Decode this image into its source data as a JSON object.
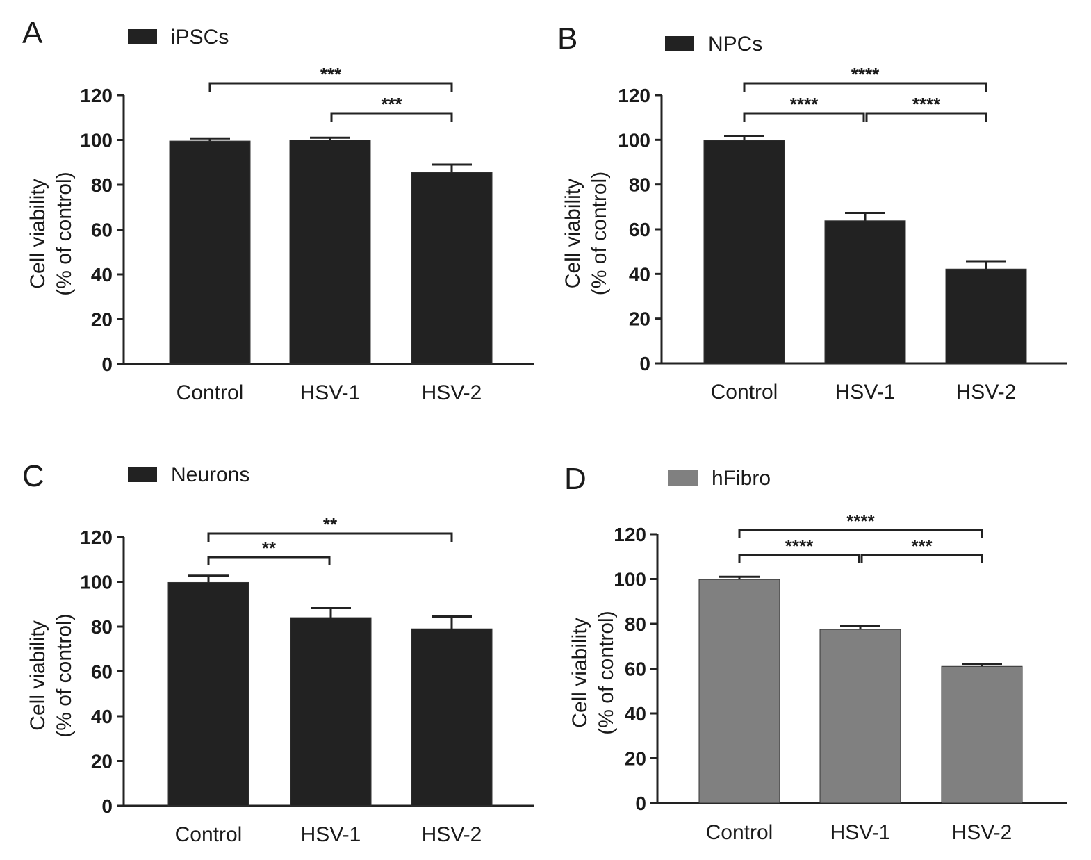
{
  "chart_data": [
    {
      "panel": "A",
      "type": "bar",
      "legend": "iPSCs",
      "bar_color": "#222222",
      "categories": [
        "Control",
        "HSV-1",
        "HSV-2"
      ],
      "values": [
        99.5,
        100,
        85.5
      ],
      "errors": [
        1.2,
        1.0,
        3.5
      ],
      "ylabel": [
        "Cell viability",
        "(% of control)"
      ],
      "yticks": [
        0,
        20,
        40,
        60,
        80,
        100,
        120
      ],
      "ylim": [
        0,
        120
      ],
      "significance": [
        {
          "from": 0,
          "to": 2,
          "label": "***"
        },
        {
          "from": 1,
          "to": 2,
          "label": "***"
        }
      ]
    },
    {
      "panel": "B",
      "type": "bar",
      "legend": "NPCs",
      "bar_color": "#222222",
      "categories": [
        "Control",
        "HSV-1",
        "HSV-2"
      ],
      "values": [
        99.8,
        63.8,
        42.2
      ],
      "errors": [
        2.0,
        3.5,
        3.5
      ],
      "ylabel": [
        "Cell viability",
        "(% of control)"
      ],
      "yticks": [
        0,
        20,
        40,
        60,
        80,
        100,
        120
      ],
      "ylim": [
        0,
        120
      ],
      "significance": [
        {
          "from": 0,
          "to": 2,
          "label": "****"
        },
        {
          "from": 0,
          "to": 1,
          "label": "****"
        },
        {
          "from": 1,
          "to": 2,
          "label": "****"
        }
      ]
    },
    {
      "panel": "C",
      "type": "bar",
      "legend": "Neurons",
      "bar_color": "#222222",
      "categories": [
        "Control",
        "HSV-1",
        "HSV-2"
      ],
      "values": [
        99.7,
        84.0,
        79.0
      ],
      "errors": [
        3.0,
        4.2,
        5.5
      ],
      "ylabel": [
        "Cell viability",
        "(% of control)"
      ],
      "yticks": [
        0,
        20,
        40,
        60,
        80,
        100,
        120
      ],
      "ylim": [
        0,
        120
      ],
      "significance": [
        {
          "from": 0,
          "to": 2,
          "label": "**"
        },
        {
          "from": 0,
          "to": 1,
          "label": "**"
        }
      ]
    },
    {
      "panel": "D",
      "type": "bar",
      "legend": "hFibro",
      "bar_color": "#808080",
      "categories": [
        "Control",
        "HSV-1",
        "HSV-2"
      ],
      "values": [
        99.8,
        77.5,
        61.0
      ],
      "errors": [
        1.2,
        1.5,
        1.0
      ],
      "ylabel": [
        "Cell viability",
        "(% of control)"
      ],
      "yticks": [
        0,
        20,
        40,
        60,
        80,
        100,
        120
      ],
      "ylim": [
        0,
        120
      ],
      "significance": [
        {
          "from": 0,
          "to": 2,
          "label": "****"
        },
        {
          "from": 0,
          "to": 1,
          "label": "****"
        },
        {
          "from": 1,
          "to": 2,
          "label": "***"
        }
      ]
    }
  ]
}
